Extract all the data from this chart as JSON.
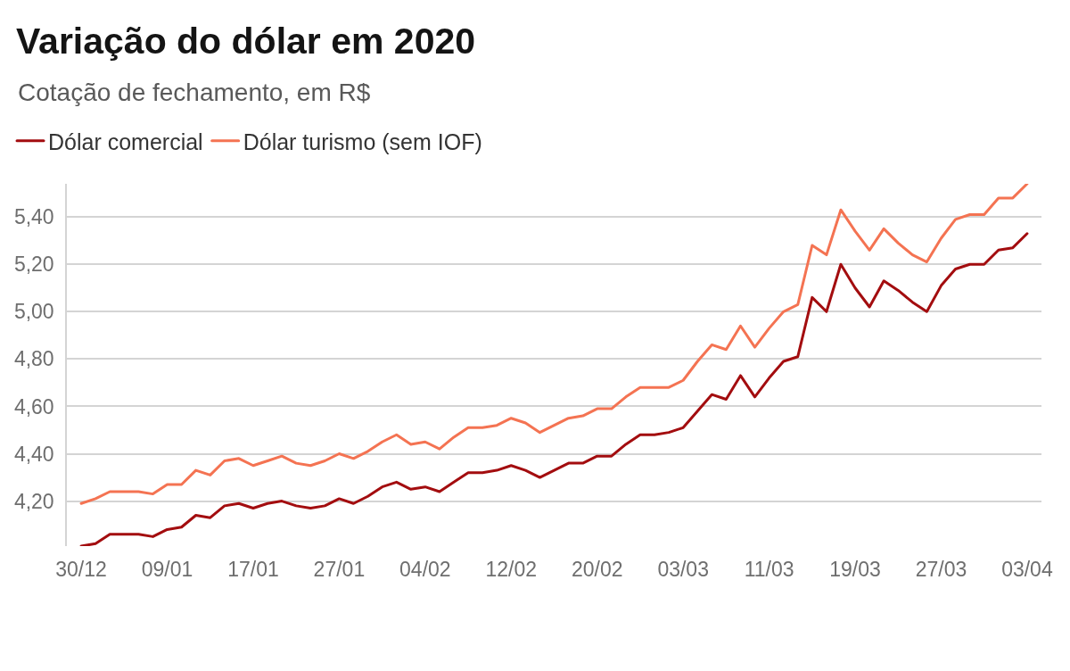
{
  "chart_data": {
    "type": "line",
    "title": "Variação do dólar em 2020",
    "subtitle": "Cotação de fechamento, em R$",
    "categories": [
      "30/12",
      null,
      null,
      null,
      null,
      null,
      "09/01",
      null,
      null,
      null,
      null,
      null,
      "17/01",
      null,
      null,
      null,
      null,
      null,
      "27/01",
      null,
      null,
      null,
      null,
      null,
      "04/02",
      null,
      null,
      null,
      null,
      null,
      "12/02",
      null,
      null,
      null,
      null,
      null,
      "20/02",
      null,
      null,
      null,
      null,
      null,
      "03/03",
      null,
      null,
      null,
      null,
      null,
      "11/03",
      null,
      null,
      null,
      null,
      null,
      "19/03",
      null,
      null,
      null,
      null,
      null,
      "27/03",
      null,
      null,
      null,
      null,
      null,
      "03/04"
    ],
    "series": [
      {
        "name": "Dólar comercial",
        "color": "#a30d0f",
        "values": [
          4.01,
          4.02,
          4.06,
          4.06,
          4.06,
          4.05,
          4.08,
          4.09,
          4.14,
          4.13,
          4.18,
          4.19,
          4.17,
          4.19,
          4.2,
          4.18,
          4.17,
          4.18,
          4.21,
          4.19,
          4.22,
          4.26,
          4.28,
          4.25,
          4.26,
          4.24,
          4.28,
          4.32,
          4.32,
          4.33,
          4.35,
          4.33,
          4.3,
          4.33,
          4.36,
          4.36,
          4.39,
          4.39,
          4.44,
          4.48,
          4.48,
          4.49,
          4.51,
          4.58,
          4.65,
          4.63,
          4.73,
          4.64,
          4.72,
          4.79,
          4.81,
          5.06,
          5.0,
          5.2,
          5.1,
          5.02,
          5.13,
          5.09,
          5.04,
          5.0,
          5.11,
          5.18,
          5.2,
          5.2,
          5.26,
          5.27,
          5.33
        ]
      },
      {
        "name": "Dólar turismo (sem IOF)",
        "color": "#f47352",
        "values": [
          4.19,
          4.21,
          4.24,
          4.24,
          4.24,
          4.23,
          4.27,
          4.27,
          4.33,
          4.31,
          4.37,
          4.38,
          4.35,
          4.37,
          4.39,
          4.36,
          4.35,
          4.37,
          4.4,
          4.38,
          4.41,
          4.45,
          4.48,
          4.44,
          4.45,
          4.42,
          4.47,
          4.51,
          4.51,
          4.52,
          4.55,
          4.53,
          4.49,
          4.52,
          4.55,
          4.56,
          4.59,
          4.59,
          4.64,
          4.68,
          4.68,
          4.68,
          4.71,
          4.79,
          4.86,
          4.84,
          4.94,
          4.85,
          4.93,
          5.0,
          5.03,
          5.28,
          5.24,
          5.43,
          5.34,
          5.26,
          5.35,
          5.29,
          5.24,
          5.21,
          5.31,
          5.39,
          5.41,
          5.41,
          5.48,
          5.48,
          5.54
        ]
      }
    ],
    "ylim": [
      4.01,
      5.54
    ],
    "yticks": [
      {
        "value": 4.2,
        "label": "4,20"
      },
      {
        "value": 4.4,
        "label": "4,40"
      },
      {
        "value": 4.6,
        "label": "4,60"
      },
      {
        "value": 4.8,
        "label": "4,80"
      },
      {
        "value": 5.0,
        "label": "5,00"
      },
      {
        "value": 5.2,
        "label": "5,20"
      },
      {
        "value": 5.4,
        "label": "5,40"
      }
    ],
    "grid": "y",
    "legend": "top left"
  }
}
